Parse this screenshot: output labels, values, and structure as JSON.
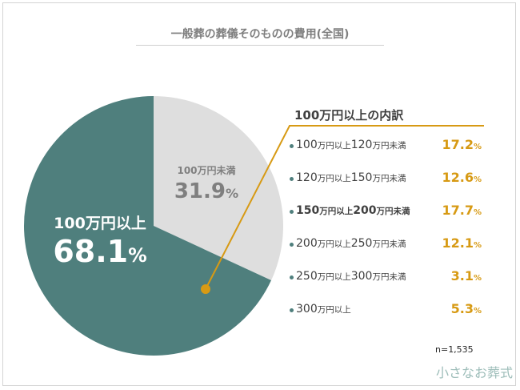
{
  "chart_data": {
    "type": "pie",
    "title": "一般葬の葬儀そのものの費用(全国)",
    "slices": [
      {
        "name": "100万円未満",
        "value": 31.9,
        "color": "#dedede"
      },
      {
        "name": "100万円以上",
        "value": 68.1,
        "color": "#4f7f7d"
      }
    ],
    "breakdown": {
      "title": "100万円以上の内訳",
      "items": [
        {
          "label": "100万円以上120万円未満",
          "value": 17.2
        },
        {
          "label": "120万円以上150万円未満",
          "value": 12.6
        },
        {
          "label": "150万円以上200万円未満",
          "value": 17.7
        },
        {
          "label": "200万円以上250万円未満",
          "value": 12.1
        },
        {
          "label": "250万円以上300万円未満",
          "value": 3.1
        },
        {
          "label": "300万円以上",
          "value": 5.3
        }
      ],
      "highlighted_item": 2,
      "accent_color": "#d79a14"
    },
    "percent_unit": "%",
    "sample_size": "n=1,535"
  },
  "brand": {
    "logo_text": "小さなお葬式"
  }
}
